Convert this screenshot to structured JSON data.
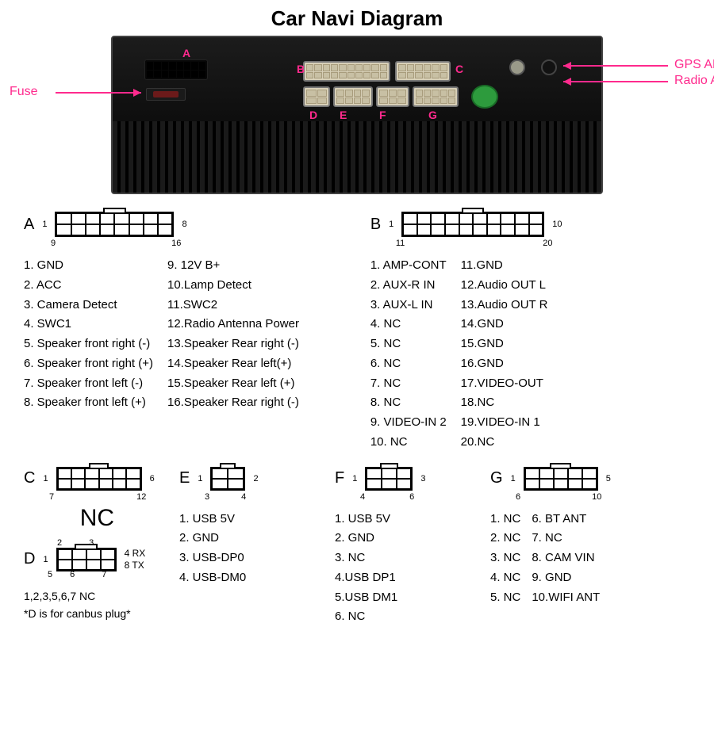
{
  "title": "Car Navi Diagram",
  "accent_color": "#ff2a8d",
  "unit_labels": {
    "fuse": "Fuse",
    "gps": "GPS ANT",
    "radio": "Radio ANT",
    "letters": {
      "A": "A",
      "B": "B",
      "C": "C",
      "D": "D",
      "E": "E",
      "F": "F",
      "G": "G"
    }
  },
  "connectors": {
    "A": {
      "letter": "A",
      "cols": 8,
      "rows": 2,
      "corners": {
        "tl": "1",
        "tr": "8",
        "bl": "9",
        "br": "16"
      },
      "left": [
        "1. GND",
        "2. ACC",
        "3. Camera Detect",
        "4. SWC1",
        "5. Speaker front right (-)",
        "6. Speaker front right (+)",
        "7. Speaker front left (-)",
        "8. Speaker front left (+)"
      ],
      "right": [
        "9.  12V B+",
        "10.Lamp Detect",
        "11.SWC2",
        "12.Radio Antenna Power",
        "13.Speaker Rear right (-)",
        "14.Speaker Rear left(+)",
        "15.Speaker Rear left (+)",
        "16.Speaker Rear right (-)"
      ]
    },
    "B": {
      "letter": "B",
      "cols": 10,
      "rows": 2,
      "corners": {
        "tl": "1",
        "tr": "10",
        "bl": "11",
        "br": "20"
      },
      "left": [
        "1.  AMP-CONT",
        "2.  AUX-R IN",
        "3.  AUX-L IN",
        "4.  NC",
        "5.  NC",
        "6.  NC",
        "7.  NC",
        "8.  NC",
        "9.  VIDEO-IN 2",
        "10.  NC"
      ],
      "right": [
        "11.GND",
        "12.Audio OUT  L",
        "13.Audio OUT  R",
        "14.GND",
        "15.GND",
        "16.GND",
        "17.VIDEO-OUT",
        "18.NC",
        "19.VIDEO-IN 1",
        "20.NC"
      ]
    },
    "C": {
      "letter": "C",
      "cols": 6,
      "rows": 2,
      "corners": {
        "tl": "1",
        "tr": "6",
        "bl": "7",
        "br": "12"
      },
      "nc_label": "NC"
    },
    "D": {
      "letter": "D",
      "cols": 4,
      "rows": 2,
      "top_nums": {
        "l": "2",
        "r": "3"
      },
      "side": {
        "tl": "1",
        "tr": "4 RX",
        "bl": "5",
        "br": "8 TX"
      },
      "bot_nums": {
        "l": "6",
        "r": "7"
      },
      "footer1": "1,2,3,5,6,7  NC",
      "footer2": "*D is for canbus plug*"
    },
    "E": {
      "letter": "E",
      "cols": 2,
      "rows": 2,
      "corners": {
        "tl": "1",
        "tr": "2",
        "bl": "3",
        "br": "4"
      },
      "items": [
        "1. USB 5V",
        "2. GND",
        "3. USB-DP0",
        "4. USB-DM0"
      ]
    },
    "F": {
      "letter": "F",
      "cols": 3,
      "rows": 2,
      "corners": {
        "tl": "1",
        "tr": "3",
        "bl": "4",
        "br": "6"
      },
      "items": [
        "1. USB 5V",
        "2. GND",
        "3. NC",
        "4.USB DP1",
        "5.USB DM1",
        "6. NC"
      ]
    },
    "G": {
      "letter": "G",
      "cols": 5,
      "rows": 2,
      "corners": {
        "tl": "1",
        "tr": "5",
        "bl": "6",
        "br": "10"
      },
      "left": [
        "1. NC",
        "2. NC",
        "3. NC",
        "4. NC",
        "5. NC"
      ],
      "right": [
        "6.  BT ANT",
        "7.  NC",
        "8.  CAM VIN",
        "9.  GND",
        "10.WIFI ANT"
      ]
    }
  }
}
